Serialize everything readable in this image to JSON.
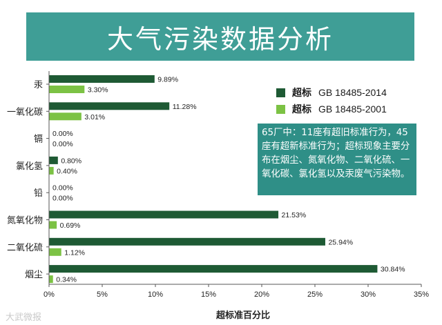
{
  "banner": {
    "title": "大气污染数据分析"
  },
  "colors": {
    "series_2014": "#1e5a34",
    "series_2001": "#7cc244",
    "banner": "#3f9e96",
    "note_bg": "#2f8f87"
  },
  "legend": {
    "items": [
      {
        "label": "超标",
        "standard": "GB 18485-2014"
      },
      {
        "label": "超标",
        "standard": "GB 18485-2001"
      }
    ]
  },
  "note": {
    "text": "65厂中：11座有超旧标准行为，45座有超新标准行为；超标现象主要分布在烟尘、氮氧化物、二氧化硫、一氧化碳、氯化氢以及汞废气污染物。"
  },
  "watermark": {
    "text": "大武微报"
  },
  "chart_data": {
    "type": "bar",
    "orientation": "horizontal",
    "categories": [
      "汞",
      "一氧化碳",
      "镉",
      "氯化氢",
      "铅",
      "氮氧化物",
      "二氧化硫",
      "烟尘"
    ],
    "series": [
      {
        "name": "超标 GB 18485-2014",
        "values": [
          9.89,
          11.28,
          0.0,
          0.8,
          0.0,
          21.53,
          25.94,
          30.84
        ],
        "labels": [
          "9.89%",
          "11.28%",
          "0.00%",
          "0.80%",
          "0.00%",
          "21.53%",
          "25.94%",
          "30.84%"
        ]
      },
      {
        "name": "超标 GB 18485-2001",
        "values": [
          3.3,
          3.01,
          0.0,
          0.4,
          0.0,
          0.69,
          1.12,
          0.34
        ],
        "labels": [
          "3.30%",
          "3.01%",
          "0.00%",
          "0.40%",
          "0.00%",
          "0.69%",
          "1.12%",
          "0.34%"
        ]
      }
    ],
    "xlabel": "超标准百分比",
    "xlim": [
      0,
      35
    ],
    "xticks": [
      "0%",
      "5%",
      "10%",
      "15%",
      "20%",
      "25%",
      "30%",
      "35%"
    ],
    "grid": false,
    "legend_position": "right"
  }
}
